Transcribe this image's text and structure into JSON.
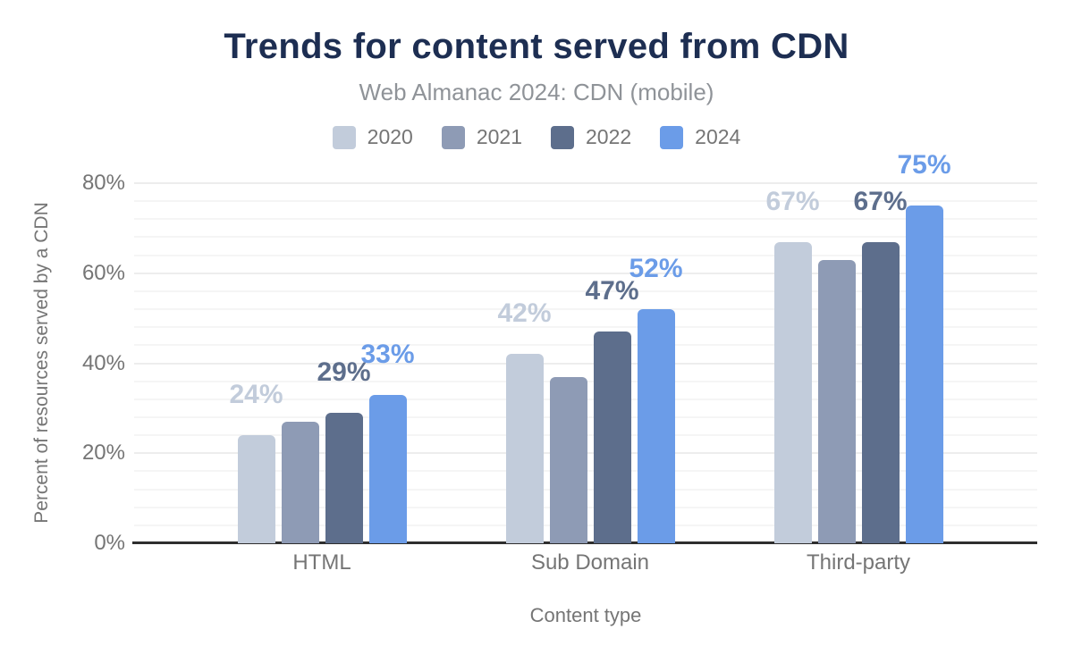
{
  "chart_data": {
    "type": "bar",
    "title": "Trends for content served from CDN",
    "subtitle": "Web Almanac 2024: CDN (mobile)",
    "xlabel": "Content type",
    "ylabel": "Percent of resources served by a CDN",
    "categories": [
      "HTML",
      "Sub Domain",
      "Third-party"
    ],
    "series": [
      {
        "name": "2020",
        "color": "#c2ccdb",
        "values": [
          24,
          42,
          67
        ],
        "data_labels": [
          "24%",
          "42%",
          "67%"
        ],
        "show_labels": true
      },
      {
        "name": "2021",
        "color": "#8e9bb5",
        "values": [
          27,
          37,
          63
        ],
        "data_labels": [],
        "show_labels": false
      },
      {
        "name": "2022",
        "color": "#5d6e8c",
        "values": [
          29,
          47,
          67
        ],
        "data_labels": [
          "29%",
          "47%",
          "67%"
        ],
        "show_labels": true
      },
      {
        "name": "2024",
        "color": "#6b9ce8",
        "values": [
          33,
          52,
          75
        ],
        "data_labels": [
          "33%",
          "52%",
          "75%"
        ],
        "show_labels": true
      }
    ],
    "ylim": [
      0,
      80
    ],
    "yticks": [
      "0%",
      "20%",
      "40%",
      "60%",
      "80%"
    ],
    "legend_position": "top",
    "grid": true,
    "colors": {
      "title_text": "#1d2e52",
      "subtitle_text": "#8f9398",
      "axis_text": "#757575",
      "baseline": "#2e2e2e",
      "gridline": "#f0f0f0"
    }
  }
}
